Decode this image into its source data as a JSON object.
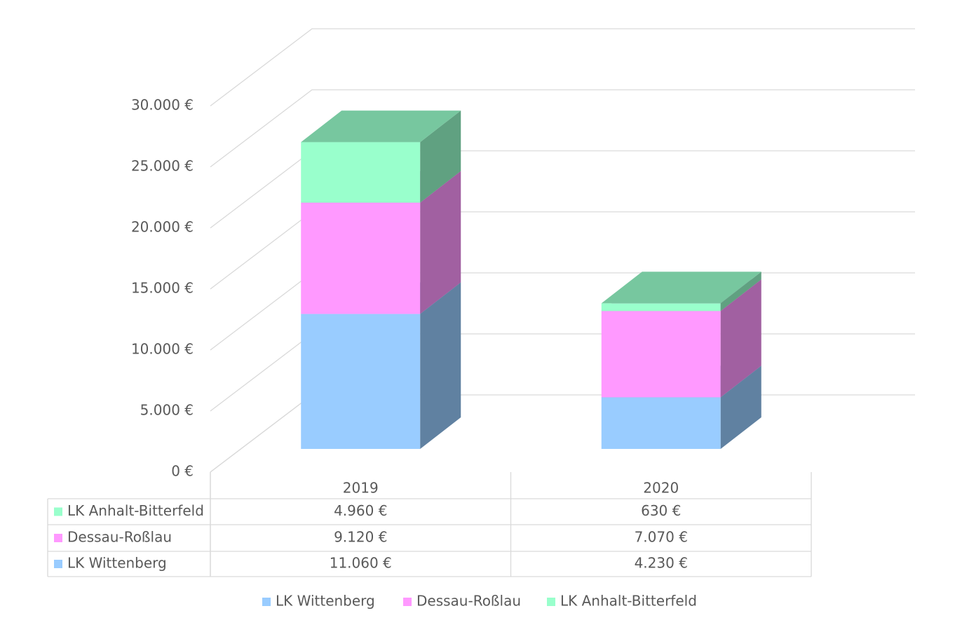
{
  "chart_data": {
    "type": "bar3d_stacked",
    "categories": [
      "2019",
      "2020"
    ],
    "series": [
      {
        "name": "LK Wittenberg",
        "color": "#99ccff",
        "values": [
          11060,
          4230
        ],
        "value_labels": [
          "11.060 €",
          "4.230 €"
        ]
      },
      {
        "name": "Dessau-Roßlau",
        "color": "#ff99ff",
        "values": [
          9120,
          7070
        ],
        "value_labels": [
          "9.120 €",
          "7.070 €"
        ]
      },
      {
        "name": "LK Anhalt-Bitterfeld",
        "color": "#99ffcc",
        "values": [
          4960,
          630
        ],
        "value_labels": [
          "4.960 €",
          "630 €"
        ]
      }
    ],
    "ylim": [
      0,
      30000
    ],
    "yticks": [
      {
        "value": 0,
        "label": "0 €"
      },
      {
        "value": 5000,
        "label": "5.000 €"
      },
      {
        "value": 10000,
        "label": "10.000 €"
      },
      {
        "value": 15000,
        "label": "15.000 €"
      },
      {
        "value": 20000,
        "label": "20.000 €"
      },
      {
        "value": 25000,
        "label": "25.000 €"
      },
      {
        "value": 30000,
        "label": "30.000 €"
      }
    ],
    "grid": true,
    "legend": "bottom",
    "data_table": true
  }
}
